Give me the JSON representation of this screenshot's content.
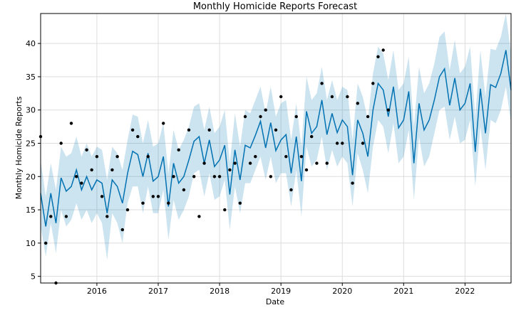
{
  "chart_data": {
    "type": "line",
    "title": "Monthly Homicide Reports Forecast",
    "xlabel": "Date",
    "ylabel": "Monthly Homicide Reports",
    "ylim": [
      4,
      44.5
    ],
    "xlim": [
      "2015-02-01",
      "2022-10-01"
    ],
    "y_ticks": [
      "5",
      "10",
      "15",
      "20",
      "25",
      "30",
      "35",
      "40"
    ],
    "x_ticks": [
      "2016",
      "2017",
      "2018",
      "2019",
      "2020",
      "2021",
      "2022"
    ],
    "grid": true,
    "colors": {
      "forecast_line": "#0072B2",
      "interval_fill": "#0072B2",
      "observed": "#000000"
    },
    "series": [
      {
        "kind": "observed",
        "x": [
          "2015-02",
          "2015-03",
          "2015-04",
          "2015-05",
          "2015-06",
          "2015-07",
          "2015-08",
          "2015-09",
          "2015-10",
          "2015-11",
          "2015-12",
          "2016-01",
          "2016-02",
          "2016-03",
          "2016-04",
          "2016-05",
          "2016-06",
          "2016-07",
          "2016-08",
          "2016-09",
          "2016-10",
          "2016-11",
          "2016-12",
          "2017-01",
          "2017-02",
          "2017-03",
          "2017-04",
          "2017-05",
          "2017-06",
          "2017-07",
          "2017-08",
          "2017-09",
          "2017-10",
          "2017-11",
          "2017-12",
          "2018-01",
          "2018-02",
          "2018-03",
          "2018-04",
          "2018-05",
          "2018-06",
          "2018-07",
          "2018-08",
          "2018-09",
          "2018-10",
          "2018-11",
          "2018-12",
          "2019-01",
          "2019-02",
          "2019-03",
          "2019-04",
          "2019-05",
          "2019-06",
          "2019-07",
          "2019-08",
          "2019-09",
          "2019-10",
          "2019-11",
          "2019-12",
          "2020-01",
          "2020-02",
          "2020-03",
          "2020-04",
          "2020-05",
          "2020-06",
          "2020-07",
          "2020-08",
          "2020-09",
          "2020-10"
        ],
        "values": [
          26,
          10,
          14,
          4,
          25,
          14,
          28,
          20,
          19,
          24,
          21,
          23,
          17,
          14,
          21,
          23,
          12,
          15,
          27,
          26,
          16,
          23,
          17,
          17,
          28,
          16,
          20,
          24,
          18,
          27,
          20,
          14,
          22,
          27,
          20,
          20,
          15,
          21,
          22,
          16,
          29,
          22,
          23,
          29,
          30,
          20,
          27,
          32,
          23,
          18,
          29,
          23,
          21,
          26,
          22,
          34,
          22,
          32,
          25,
          25,
          32,
          19,
          31,
          25,
          29,
          34,
          38,
          39,
          30
        ]
      },
      {
        "kind": "forecast",
        "x": [
          "2015-02",
          "2015-03",
          "2015-04",
          "2015-05",
          "2015-06",
          "2015-07",
          "2015-08",
          "2015-09",
          "2015-10",
          "2015-11",
          "2015-12",
          "2016-01",
          "2016-02",
          "2016-03",
          "2016-04",
          "2016-05",
          "2016-06",
          "2016-07",
          "2016-08",
          "2016-09",
          "2016-10",
          "2016-11",
          "2016-12",
          "2017-01",
          "2017-02",
          "2017-03",
          "2017-04",
          "2017-05",
          "2017-06",
          "2017-07",
          "2017-08",
          "2017-09",
          "2017-10",
          "2017-11",
          "2017-12",
          "2018-01",
          "2018-02",
          "2018-03",
          "2018-04",
          "2018-05",
          "2018-06",
          "2018-07",
          "2018-08",
          "2018-09",
          "2018-10",
          "2018-11",
          "2018-12",
          "2019-01",
          "2019-02",
          "2019-03",
          "2019-04",
          "2019-05",
          "2019-06",
          "2019-07",
          "2019-08",
          "2019-09",
          "2019-10",
          "2019-11",
          "2019-12",
          "2020-01",
          "2020-02",
          "2020-03",
          "2020-04",
          "2020-05",
          "2020-06",
          "2020-07",
          "2020-08",
          "2020-09",
          "2020-10",
          "2020-11",
          "2020-12",
          "2021-01",
          "2021-02",
          "2021-03",
          "2021-04",
          "2021-05",
          "2021-06",
          "2021-07",
          "2021-08",
          "2021-09",
          "2021-10",
          "2021-11",
          "2021-12",
          "2022-01",
          "2022-02",
          "2022-03",
          "2022-04",
          "2022-05",
          "2022-06",
          "2022-07",
          "2022-08",
          "2022-09",
          "2022-10"
        ],
        "values": [
          17.5,
          12.5,
          17.5,
          13.0,
          19.8,
          17.8,
          18.5,
          21.0,
          18.0,
          20.0,
          18.0,
          19.5,
          19.0,
          14.5,
          19.5,
          18.5,
          16.0,
          20.5,
          23.8,
          23.3,
          20.0,
          23.5,
          19.3,
          20.0,
          23.0,
          15.5,
          22.0,
          19.0,
          20.0,
          22.5,
          25.3,
          26.0,
          22.0,
          25.5,
          21.5,
          22.5,
          24.7,
          17.3,
          24.0,
          19.5,
          24.7,
          24.3,
          26.2,
          28.3,
          24.3,
          28.1,
          23.9,
          25.5,
          26.3,
          20.5,
          26.0,
          19.3,
          29.8,
          26.5,
          27.5,
          31.5,
          26.3,
          29.5,
          26.6,
          28.5,
          27.5,
          20.2,
          28.5,
          26.5,
          23.0,
          30.0,
          34.0,
          33.0,
          29.0,
          33.5,
          27.3,
          28.5,
          32.8,
          22.0,
          31.0,
          27.0,
          28.5,
          31.5,
          35.0,
          36.2,
          30.7,
          34.8,
          30.0,
          31.0,
          34.0,
          23.7,
          33.2,
          26.5,
          33.8,
          33.4,
          35.5,
          39.0,
          33.0
        ],
        "lower": [
          12.5,
          8.0,
          13.0,
          8.5,
          15.0,
          12.5,
          13.5,
          16.0,
          13.5,
          15.0,
          13.0,
          14.5,
          13.0,
          7.5,
          14.5,
          13.0,
          10.0,
          16.0,
          18.5,
          18.5,
          14.5,
          18.5,
          14.5,
          14.5,
          18.0,
          10.5,
          16.5,
          13.5,
          15.0,
          17.0,
          20.5,
          21.0,
          17.0,
          20.5,
          16.5,
          17.0,
          19.5,
          12.0,
          18.5,
          14.5,
          19.0,
          19.0,
          21.0,
          23.0,
          19.5,
          23.0,
          19.0,
          20.5,
          20.5,
          15.5,
          21.0,
          14.0,
          24.5,
          21.5,
          22.5,
          26.0,
          21.0,
          24.0,
          21.5,
          23.0,
          22.0,
          15.5,
          23.5,
          21.0,
          17.5,
          24.5,
          28.5,
          27.5,
          23.5,
          28.0,
          22.0,
          23.0,
          27.0,
          16.5,
          26.0,
          21.5,
          23.0,
          26.5,
          30.0,
          30.5,
          25.5,
          29.0,
          25.0,
          25.5,
          28.5,
          18.5,
          27.5,
          21.0,
          28.5,
          28.0,
          30.0,
          33.5,
          28.0
        ],
        "upper": [
          22.5,
          17.0,
          22.0,
          18.0,
          24.5,
          23.0,
          23.5,
          26.0,
          23.0,
          25.0,
          23.0,
          24.5,
          24.0,
          19.5,
          24.5,
          23.5,
          21.0,
          25.5,
          29.3,
          29.0,
          25.0,
          28.5,
          24.5,
          25.0,
          28.0,
          20.5,
          27.0,
          24.0,
          25.5,
          27.5,
          30.5,
          31.0,
          27.0,
          30.5,
          26.5,
          27.5,
          30.0,
          22.0,
          29.5,
          24.5,
          30.0,
          29.5,
          31.5,
          33.5,
          29.5,
          33.5,
          29.0,
          31.0,
          31.5,
          25.5,
          31.0,
          24.5,
          35.0,
          31.5,
          32.5,
          36.5,
          31.5,
          34.5,
          31.5,
          33.5,
          33.0,
          25.5,
          34.0,
          32.0,
          28.5,
          35.5,
          39.5,
          38.5,
          34.5,
          39.0,
          33.0,
          34.0,
          38.0,
          27.5,
          36.5,
          32.5,
          34.0,
          37.0,
          41.0,
          41.8,
          36.0,
          40.5,
          35.5,
          36.5,
          39.5,
          29.0,
          39.0,
          32.0,
          39.2,
          39.0,
          41.0,
          44.5,
          38.5
        ]
      }
    ]
  }
}
